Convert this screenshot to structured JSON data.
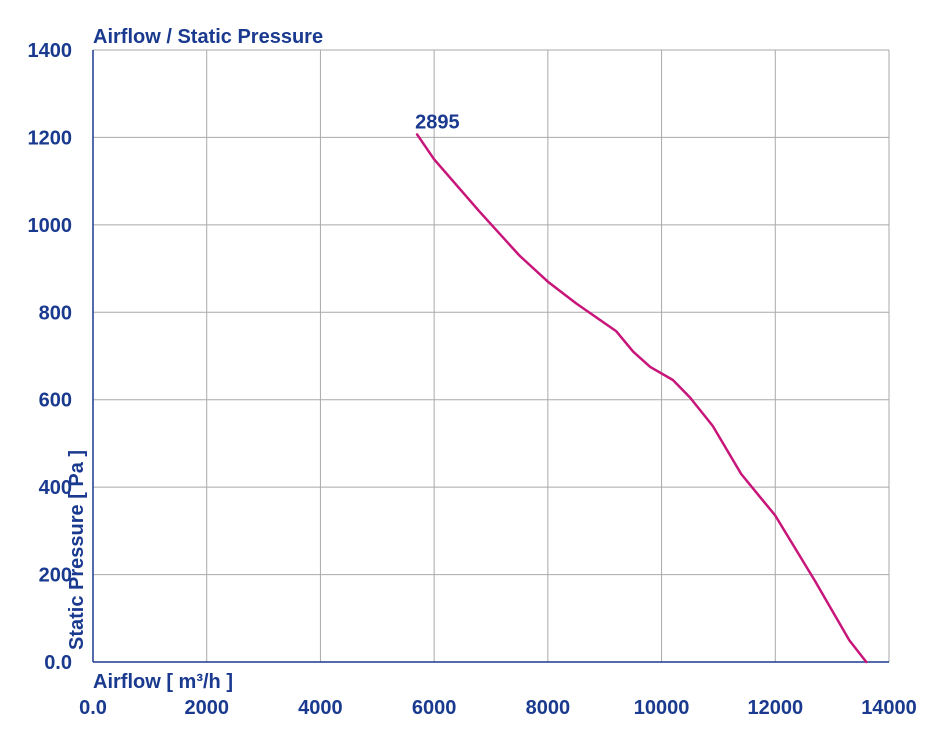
{
  "chart_data": {
    "type": "line",
    "title": "Airflow / Static Pressure",
    "xlabel": "Airflow [ m³/h ]",
    "ylabel": "Static Pressure [ Pa ]",
    "xlim": [
      0,
      14000
    ],
    "ylim": [
      0,
      1400
    ],
    "x_ticks": [
      0,
      2000,
      4000,
      6000,
      8000,
      10000,
      12000,
      14000
    ],
    "x_tick_labels": [
      "0.0",
      "2000",
      "4000",
      "6000",
      "8000",
      "10000",
      "12000",
      "14000"
    ],
    "y_ticks": [
      0,
      200,
      400,
      600,
      800,
      1000,
      1200,
      1400
    ],
    "y_tick_labels": [
      "0.0",
      "200",
      "400",
      "600",
      "800",
      "1000",
      "1200",
      "1400"
    ],
    "grid": true,
    "series": [
      {
        "label": "2895",
        "color": "#c8157a",
        "points": [
          [
            5700,
            1207
          ],
          [
            6000,
            1150
          ],
          [
            6800,
            1030
          ],
          [
            7500,
            930
          ],
          [
            8000,
            870
          ],
          [
            8500,
            820
          ],
          [
            9200,
            757
          ],
          [
            9500,
            710
          ],
          [
            9800,
            675
          ],
          [
            10200,
            645
          ],
          [
            10500,
            605
          ],
          [
            10900,
            540
          ],
          [
            11400,
            430
          ],
          [
            12000,
            335
          ],
          [
            12700,
            185
          ],
          [
            13300,
            50
          ],
          [
            13600,
            0
          ]
        ]
      }
    ]
  },
  "colors": {
    "text": "#1a3a8f",
    "grid": "#a9a9a9",
    "axis": "#1a3a8f",
    "curve": "#c8157a"
  }
}
